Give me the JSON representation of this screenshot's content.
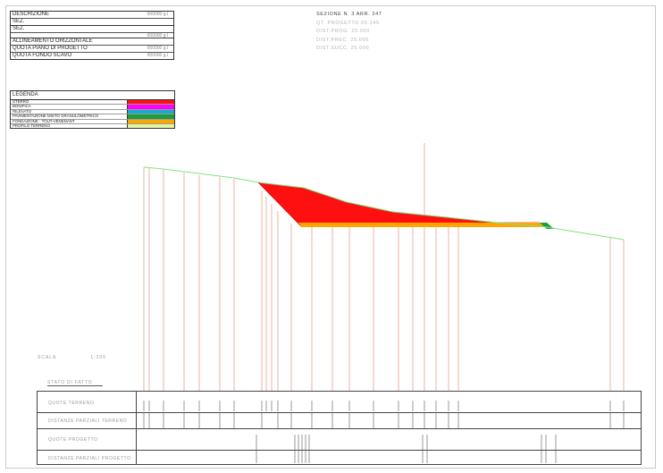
{
  "title_block": {
    "rows": [
      {
        "label": "DESCRIZIONE",
        "value": "000000 g.l"
      },
      {
        "label": "SEZ.",
        "value": ""
      },
      {
        "label": "SEZ.",
        "value": "000000 g.l"
      },
      {
        "label": "ALLINEAMENTO ORIZZONTALE",
        "value": ""
      },
      {
        "label": "QUOTA PIANO DI PROGETTO",
        "value": "000000 g.l"
      },
      {
        "label": "QUOTA FONDO SCAVO",
        "value": "000000 g.l"
      }
    ]
  },
  "section_info": {
    "line1": "SEZIONE N. 3      ARR. 247",
    "line2": "QT. PROGETTO    65.145",
    "line3": "DIST.PROG.   25.000",
    "line4": "DIST.PREC.   25.000",
    "line5": "DIST.SUCC.   25.000"
  },
  "legend": {
    "title": "LEGENDA",
    "items": [
      {
        "label": "STERRO",
        "color": "#ff1010"
      },
      {
        "label": "BONIFICA",
        "color": "#ff00ff"
      },
      {
        "label": "RILEVATO",
        "color": "#1aa9c9"
      },
      {
        "label": "PAVIMENTAZIONE MISTO GRANULOMETRICO",
        "color": "#1d9c3c"
      },
      {
        "label": "FONDAZIONE - TOUT-VENENANT",
        "color": "#ffa500"
      },
      {
        "label": "PROFILO TERRENO",
        "color": "#e3f5a0"
      }
    ]
  },
  "scale": {
    "label": "SCALA",
    "value": "1:200"
  },
  "table": {
    "header": "STATO DI FATTO",
    "rows": [
      {
        "label": "QUOTE TERRENO"
      },
      {
        "label": "DISTANZE PARZIALI TERRENO"
      },
      {
        "label": "QUOTE PROGETTO"
      },
      {
        "label": "DISTANZE PARZIALI PROGETTO"
      }
    ]
  },
  "colors": {
    "ground": "#7ee67e",
    "cut": "#ff1010",
    "foundation": "#ffa500",
    "pavement": "#1d9c3c",
    "guide": "#e7a08f"
  }
}
